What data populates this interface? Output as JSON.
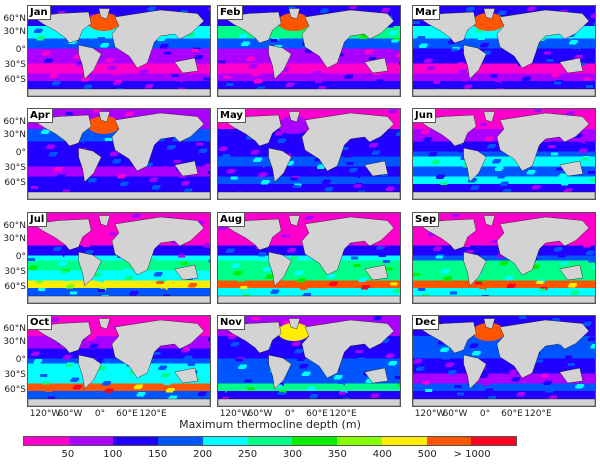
{
  "months": [
    "Jan",
    "Feb",
    "Mar",
    "Apr",
    "May",
    "Jun",
    "Jul",
    "Aug",
    "Sep",
    "Oct",
    "Nov",
    "Dec"
  ],
  "lat_labels": [
    "60°N",
    "30°N",
    "0°",
    "30°S",
    "60°S"
  ],
  "lon_labels": [
    "120°W",
    "60°W",
    "0°",
    "60°E",
    "120°E"
  ],
  "colorbar": {
    "title": "Maximum thermocline depth (m)",
    "tick_labels": [
      "50",
      "100",
      "150",
      "200",
      "250",
      "300",
      "350",
      "400",
      "500",
      "> 1000"
    ],
    "colors": [
      "#ff00cc",
      "#aa00ff",
      "#2200ff",
      "#0055ff",
      "#00ffff",
      "#00ff88",
      "#00ee00",
      "#88ff00",
      "#ffee00",
      "#ff5500",
      "#ff0022"
    ]
  },
  "chart_data": {
    "type": "heatmap",
    "title": "Maximum thermocline depth (m)",
    "panels": [
      "Jan",
      "Feb",
      "Mar",
      "Apr",
      "May",
      "Jun",
      "Jul",
      "Aug",
      "Sep",
      "Oct",
      "Nov",
      "Dec"
    ],
    "class_bounds_m": [
      0,
      50,
      100,
      150,
      200,
      250,
      300,
      350,
      400,
      500,
      1000,
      "> 1000"
    ],
    "approx_zonal_class_by_month": {
      "lat_bands": [
        "80N-50N",
        "50N-25N",
        "25N-5N",
        "5N-5S",
        "5S-25S",
        "25S-45S",
        "45S-60S",
        "60S-80S"
      ],
      "Jan": [
        2,
        4,
        3,
        1,
        1,
        0,
        1,
        2
      ],
      "Feb": [
        2,
        5,
        3,
        1,
        1,
        0,
        1,
        2
      ],
      "Mar": [
        2,
        4,
        3,
        2,
        2,
        0,
        1,
        2
      ],
      "Apr": [
        1,
        3,
        2,
        2,
        2,
        1,
        2,
        2
      ],
      "May": [
        0,
        2,
        2,
        2,
        3,
        2,
        3,
        2
      ],
      "Jun": [
        0,
        1,
        2,
        3,
        4,
        3,
        4,
        2
      ],
      "Jul": [
        0,
        0,
        2,
        4,
        5,
        4,
        8,
        3
      ],
      "Aug": [
        0,
        0,
        2,
        4,
        5,
        5,
        9,
        4
      ],
      "Sep": [
        0,
        0,
        2,
        3,
        5,
        5,
        9,
        4
      ],
      "Oct": [
        0,
        1,
        2,
        3,
        4,
        4,
        9,
        3
      ],
      "Nov": [
        1,
        2,
        2,
        3,
        3,
        3,
        5,
        2
      ],
      "Dec": [
        2,
        3,
        3,
        2,
        2,
        1,
        3,
        2
      ]
    },
    "north_atlantic_class_by_month": [
      9,
      9,
      9,
      9,
      1,
      null,
      null,
      null,
      null,
      null,
      8,
      9
    ]
  }
}
